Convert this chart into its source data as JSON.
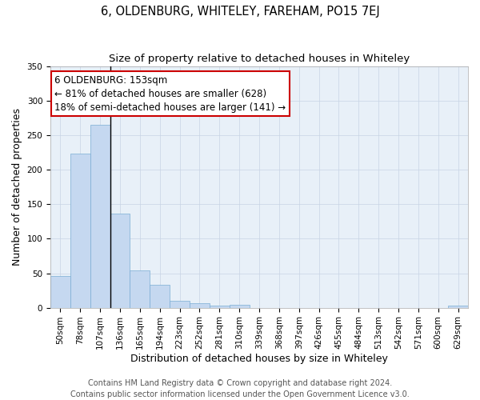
{
  "title": "6, OLDENBURG, WHITELEY, FAREHAM, PO15 7EJ",
  "subtitle": "Size of property relative to detached houses in Whiteley",
  "xlabel": "Distribution of detached houses by size in Whiteley",
  "ylabel": "Number of detached properties",
  "footer_line1": "Contains HM Land Registry data © Crown copyright and database right 2024.",
  "footer_line2": "Contains public sector information licensed under the Open Government Licence v3.0.",
  "annotation_title": "6 OLDENBURG: 153sqm",
  "annotation_line2": "← 81% of detached houses are smaller (628)",
  "annotation_line3": "18% of semi-detached houses are larger (141) →",
  "bar_categories": [
    "50sqm",
    "78sqm",
    "107sqm",
    "136sqm",
    "165sqm",
    "194sqm",
    "223sqm",
    "252sqm",
    "281sqm",
    "310sqm",
    "339sqm",
    "368sqm",
    "397sqm",
    "426sqm",
    "455sqm",
    "484sqm",
    "513sqm",
    "542sqm",
    "571sqm",
    "600sqm",
    "629sqm"
  ],
  "bar_values": [
    46,
    224,
    265,
    136,
    54,
    33,
    10,
    7,
    3,
    4,
    0,
    0,
    0,
    0,
    0,
    0,
    0,
    0,
    0,
    0,
    3
  ],
  "bar_color": "#c5d8f0",
  "bar_edgecolor": "#7aadd4",
  "marker_bar_index": 3,
  "ylim": [
    0,
    350
  ],
  "yticks": [
    0,
    50,
    100,
    150,
    200,
    250,
    300,
    350
  ],
  "background_color": "#ffffff",
  "plot_bg_color": "#e8f0f8",
  "grid_color": "#c8d4e4",
  "annotation_box_edgecolor": "#cc0000",
  "title_fontsize": 10.5,
  "subtitle_fontsize": 9.5,
  "axis_label_fontsize": 9,
  "tick_fontsize": 7.5,
  "footer_fontsize": 7,
  "annotation_fontsize": 8.5
}
